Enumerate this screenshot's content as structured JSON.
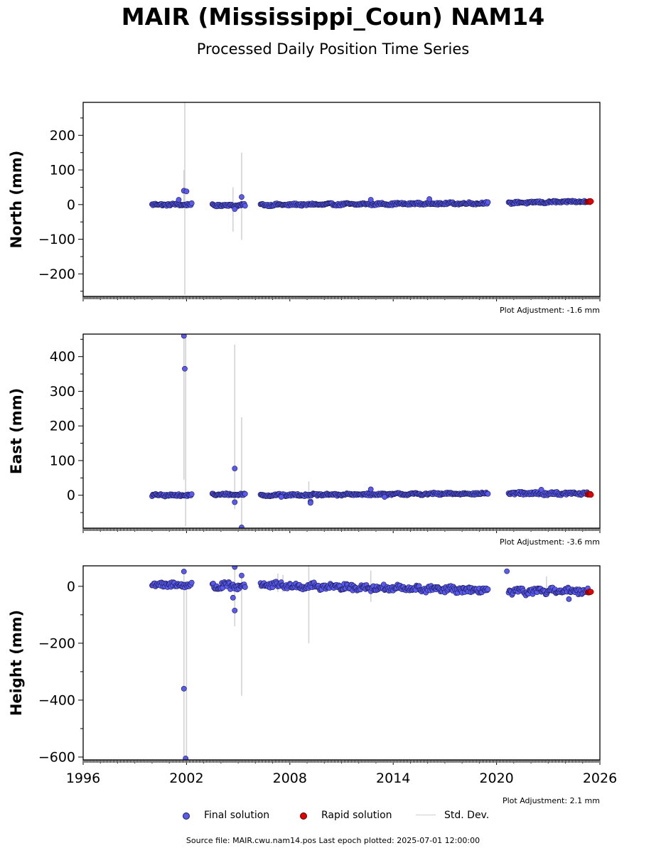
{
  "figure": {
    "title": "MAIR (Mississippi_Coun) NAM14",
    "subtitle": "Processed Daily Position Time Series",
    "footer": "Source file: MAIR.cwu.nam14.pos  Last epoch plotted: 2025-07-01 12:00:00"
  },
  "legend": {
    "final": "Final solution",
    "rapid": "Rapid solution",
    "std": "Std. Dev."
  },
  "colors": {
    "final_fill": "#5a5af0",
    "final_edge": "#1a1a50",
    "rapid": "#e00000",
    "std": "#d3d3d3"
  },
  "chart_data": [
    {
      "type": "scatter",
      "ylabel": "North (mm)",
      "adjustment": "Plot Adjustment: -1.6 mm",
      "xlim": [
        1996,
        2026
      ],
      "ylim": [
        -265,
        295
      ],
      "yticks": [
        -200,
        -100,
        0,
        100,
        200
      ],
      "xticks": [
        1996,
        2002,
        2008,
        2014,
        2020,
        2026
      ],
      "show_xtick_labels": false,
      "segments": [
        {
          "start": 2000.0,
          "end": 2002.3,
          "level": 0,
          "amp": 3
        },
        {
          "start": 2003.5,
          "end": 2005.4,
          "level": -2,
          "amp": 3
        },
        {
          "start": 2006.3,
          "end": 2019.5,
          "level_start": -1,
          "level_end": 4,
          "amp": 3
        },
        {
          "start": 2020.7,
          "end": 2025.3,
          "level_start": 5,
          "level_end": 9,
          "amp": 3
        }
      ],
      "rapid": {
        "start": 2025.3,
        "end": 2025.5,
        "level": 9
      },
      "outliers": [
        [
          2001.55,
          14
        ],
        [
          2001.85,
          40
        ],
        [
          2002.0,
          38
        ],
        [
          2004.8,
          -13
        ],
        [
          2005.2,
          22
        ],
        [
          2012.7,
          14
        ],
        [
          2016.1,
          16
        ]
      ],
      "error_bars": [
        [
          2001.9,
          -260,
          295
        ],
        [
          2001.85,
          -5,
          100
        ],
        [
          2004.7,
          -78,
          50
        ],
        [
          2005.2,
          -102,
          150
        ]
      ]
    },
    {
      "type": "scatter",
      "ylabel": "East (mm)",
      "adjustment": "Plot Adjustment: -3.6 mm",
      "xlim": [
        1996,
        2026
      ],
      "ylim": [
        -95,
        465
      ],
      "yticks": [
        0,
        100,
        200,
        300,
        400
      ],
      "xticks": [
        1996,
        2002,
        2008,
        2014,
        2020,
        2026
      ],
      "show_xtick_labels": false,
      "segments": [
        {
          "start": 2000.0,
          "end": 2002.3,
          "level": 0,
          "amp": 3
        },
        {
          "start": 2003.5,
          "end": 2005.4,
          "level": 2,
          "amp": 3
        },
        {
          "start": 2006.3,
          "end": 2019.5,
          "level_start": 0,
          "level_end": 5,
          "amp": 3
        },
        {
          "start": 2020.7,
          "end": 2025.3,
          "level_start": 5,
          "level_end": 5,
          "amp": 4
        }
      ],
      "rapid": {
        "start": 2025.3,
        "end": 2025.5,
        "level": 3
      },
      "outliers": [
        [
          2001.85,
          460
        ],
        [
          2001.9,
          365
        ],
        [
          2004.8,
          77
        ],
        [
          2004.8,
          -20
        ],
        [
          2005.2,
          -93
        ],
        [
          2007.5,
          -5
        ],
        [
          2009.2,
          -18
        ],
        [
          2009.2,
          -22
        ],
        [
          2012.7,
          17
        ],
        [
          2013.5,
          -5
        ],
        [
          2022.6,
          16
        ]
      ],
      "error_bars": [
        [
          2001.85,
          45,
          465
        ],
        [
          2001.95,
          -90,
          455
        ],
        [
          2004.8,
          -40,
          435
        ],
        [
          2005.2,
          -90,
          225
        ],
        [
          2009.1,
          -30,
          40
        ]
      ]
    },
    {
      "type": "scatter",
      "ylabel": "Height (mm)",
      "adjustment": "Plot Adjustment: 2.1 mm",
      "xlim": [
        1996,
        2026
      ],
      "ylim": [
        -610,
        72
      ],
      "yticks": [
        -600,
        -400,
        -200,
        0
      ],
      "xticks": [
        1996,
        2002,
        2008,
        2014,
        2020,
        2026
      ],
      "show_xtick_labels": true,
      "segments": [
        {
          "start": 2000.0,
          "end": 2002.3,
          "level": 5,
          "amp": 10
        },
        {
          "start": 2003.5,
          "end": 2005.4,
          "level": 0,
          "amp": 12
        },
        {
          "start": 2006.3,
          "end": 2019.5,
          "level_start": 5,
          "level_end": -15,
          "amp": 10
        },
        {
          "start": 2020.7,
          "end": 2025.3,
          "level_start": -20,
          "level_end": -15,
          "amp": 10
        }
      ],
      "rapid": {
        "start": 2025.3,
        "end": 2025.5,
        "level": -20
      },
      "outliers": [
        [
          2001.85,
          52
        ],
        [
          2001.85,
          -360
        ],
        [
          2001.95,
          -605
        ],
        [
          2004.8,
          68
        ],
        [
          2004.8,
          -85
        ],
        [
          2004.7,
          -40
        ],
        [
          2005.2,
          38
        ],
        [
          2020.6,
          53
        ],
        [
          2024.2,
          -45
        ]
      ],
      "error_bars": [
        [
          2001.85,
          -610,
          40
        ],
        [
          2002.0,
          -610,
          20
        ],
        [
          2004.8,
          -140,
          60
        ],
        [
          2005.2,
          -385,
          40
        ],
        [
          2009.1,
          -200,
          72
        ],
        [
          2012.7,
          -55,
          55
        ],
        [
          2007.3,
          -20,
          45
        ],
        [
          2007.6,
          -20,
          40
        ],
        [
          2022.9,
          -10,
          35
        ]
      ]
    }
  ]
}
